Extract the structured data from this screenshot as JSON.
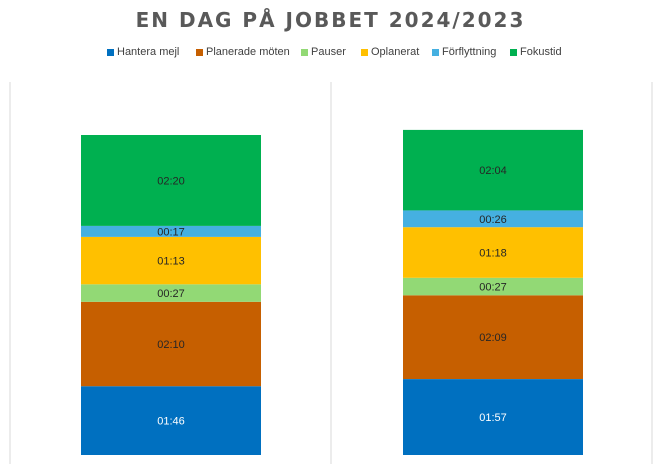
{
  "chart_data": {
    "type": "bar",
    "stacked": true,
    "title": "EN DAG PÅ JOBBET 2024/2023",
    "categories": [
      "",
      ""
    ],
    "legend_position": "top",
    "grid": false,
    "series": [
      {
        "name": "Hantera mejl",
        "color": "#0070C0",
        "values": [
          106,
          117
        ],
        "labels": [
          "01:46",
          "01:57"
        ]
      },
      {
        "name": "Planerade möten",
        "color": "#C65F00",
        "values": [
          130,
          129
        ],
        "labels": [
          "02:10",
          "02:09"
        ]
      },
      {
        "name": "Pauser",
        "color": "#92D975",
        "values": [
          27,
          27
        ],
        "labels": [
          "00:27",
          "00:27"
        ]
      },
      {
        "name": "Oplanerat",
        "color": "#FFC000",
        "values": [
          73,
          78
        ],
        "labels": [
          "01:13",
          "01:18"
        ]
      },
      {
        "name": "Förflyttning",
        "color": "#45B0E1",
        "values": [
          17,
          26
        ],
        "labels": [
          "00:17",
          "00:26"
        ]
      },
      {
        "name": "Fokustid",
        "color": "#00B050",
        "values": [
          140,
          124
        ],
        "labels": [
          "02:20",
          "02:04"
        ]
      }
    ]
  }
}
